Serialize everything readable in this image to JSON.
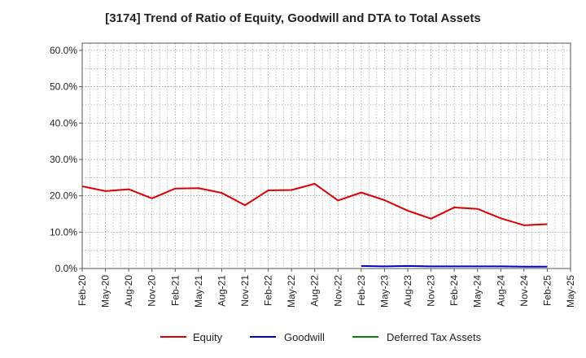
{
  "chart_data": {
    "type": "line",
    "title": "[3174]  Trend of Ratio of Equity, Goodwill and DTA to Total Assets",
    "xlabel": "",
    "ylabel": "",
    "ylim": [
      0,
      62
    ],
    "y_ticks": [
      0,
      10,
      20,
      30,
      40,
      50,
      60
    ],
    "y_tick_labels": [
      "0.0%",
      "10.0%",
      "20.0%",
      "30.0%",
      "40.0%",
      "50.0%",
      "60.0%"
    ],
    "x_tick_labels": [
      "Feb-20",
      "May-20",
      "Aug-20",
      "Nov-20",
      "Feb-21",
      "May-21",
      "Aug-21",
      "Nov-21",
      "Feb-22",
      "May-22",
      "Aug-22",
      "Nov-22",
      "Feb-23",
      "May-23",
      "Aug-23",
      "Nov-23",
      "Feb-24",
      "May-24",
      "Aug-24",
      "Nov-24",
      "Feb-25",
      "May-25"
    ],
    "grid": true,
    "legend_position": "bottom",
    "series": [
      {
        "name": "Equity",
        "color": "#dd0000",
        "start_index": 0,
        "values": [
          22.6,
          21.3,
          21.8,
          19.3,
          22.0,
          22.1,
          20.8,
          17.4,
          21.5,
          21.6,
          23.3,
          18.7,
          20.9,
          18.8,
          15.9,
          13.7,
          16.8,
          16.4,
          13.8,
          11.9,
          12.2
        ]
      },
      {
        "name": "Goodwill",
        "color": "#0000cc",
        "start_index": 12,
        "values": [
          0.7,
          0.6,
          0.7,
          0.6,
          0.6,
          0.6,
          0.6,
          0.5,
          0.5
        ]
      },
      {
        "name": "Deferred Tax Assets",
        "color": "#008800",
        "start_index": 12,
        "values": []
      }
    ]
  }
}
